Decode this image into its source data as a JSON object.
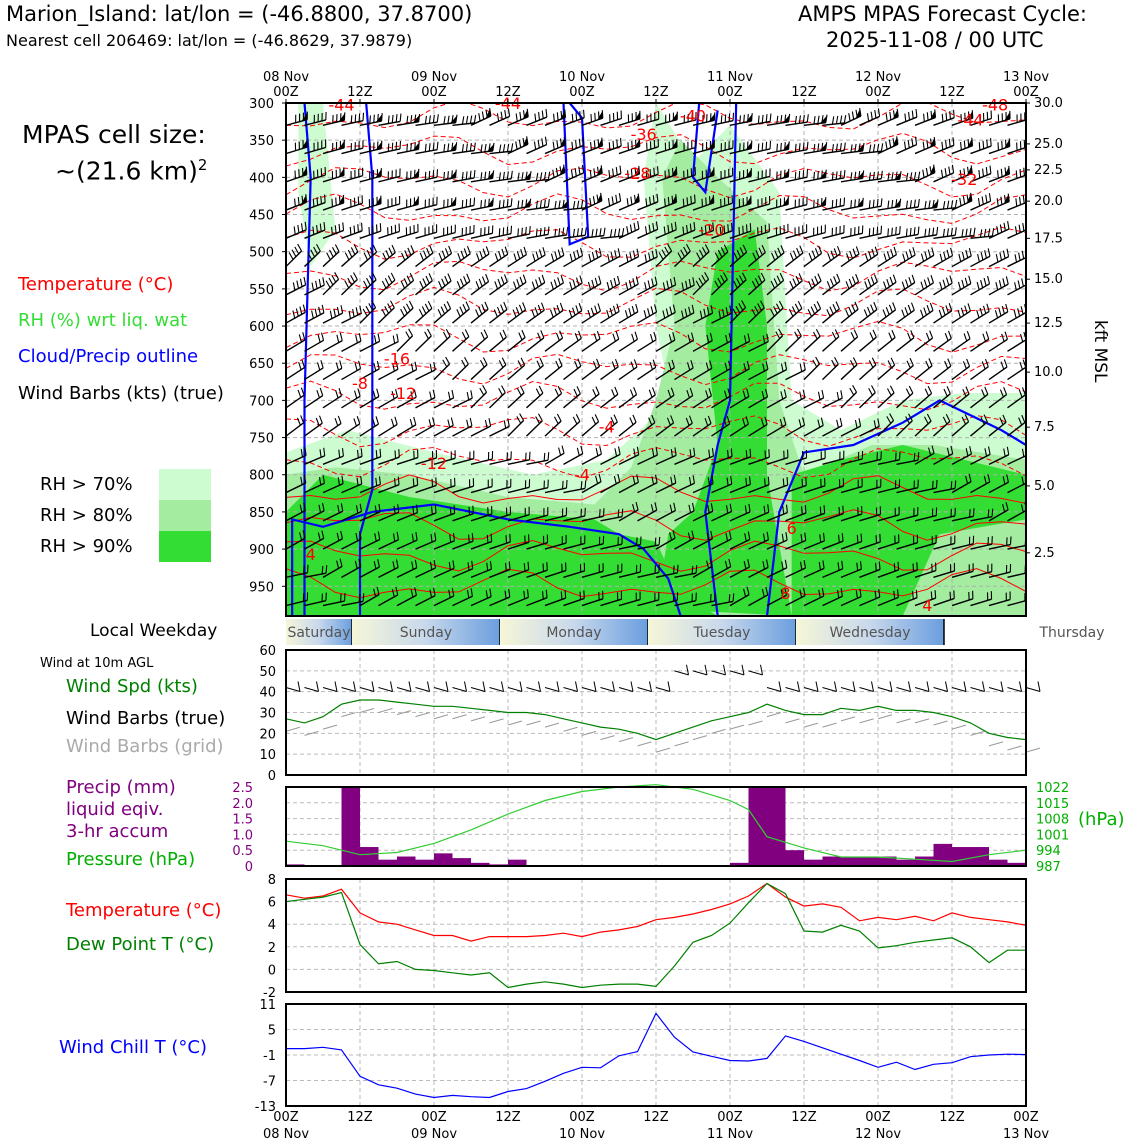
{
  "header": {
    "station": "Marion_Island: lat/lon = (-46.8800, 37.8700)",
    "nearest": "Nearest cell 206469: lat/lon = (-46.8629, 37.9879)",
    "cycle_title": "AMPS MPAS Forecast Cycle:",
    "cycle_time": "2025-11-08 / 00 UTC"
  },
  "cell_size": {
    "line1": "MPAS cell size:",
    "line2": "~(21.6 km)",
    "exp": "2"
  },
  "legend": {
    "temperature": "Temperature (°C)",
    "rh": "RH (%) wrt liq. wat",
    "cloud": "Cloud/Precip outline",
    "barbs": "Wind Barbs (kts) (true)",
    "rh70": "RH > 70%",
    "rh80": "RH > 80%",
    "rh90": "RH > 90%"
  },
  "colors": {
    "temp": "#ff0000",
    "rh70": "#ccfcd0",
    "rh80": "#a3eca0",
    "rh90": "#33dd33",
    "cloud": "#0000ff",
    "precip": "#800080",
    "pressure": "#33cc33",
    "dew": "#008000",
    "wind": "#008000"
  },
  "local_weekday": {
    "label": "Local Weekday",
    "days": [
      "Saturday",
      "Sunday",
      "Monday",
      "Tuesday",
      "Wednesday",
      "Thursday"
    ]
  },
  "wind_panel_labels": {
    "title": "Wind at 10m AGL",
    "speed": "Wind Spd (kts)",
    "barbs_true": "Wind Barbs (true)",
    "barbs_grid": "Wind Barbs (grid)"
  },
  "precip_labels": {
    "l1": "Precip (mm)",
    "l2": "liquid eqiv.",
    "l3": "3-hr accum",
    "pressure": "Pressure (hPa)",
    "unit": "(hPa)"
  },
  "temp_labels": {
    "temp": "Temperature (°C)",
    "dew": "Dew Point T (°C)"
  },
  "chill_label": "Wind Chill T (°C)",
  "kft_label": "kft MSL",
  "chart_data": [
    {
      "type": "heatmap",
      "title": "Time-height cross section",
      "x_top_ticks": [
        {
          "t": 0,
          "l1": "08 Nov",
          "l2": "00Z"
        },
        {
          "t": 12,
          "l1": "",
          "l2": "12Z"
        },
        {
          "t": 24,
          "l1": "09 Nov",
          "l2": "00Z"
        },
        {
          "t": 36,
          "l1": "",
          "l2": "12Z"
        },
        {
          "t": 48,
          "l1": "10 Nov",
          "l2": "00Z"
        },
        {
          "t": 60,
          "l1": "",
          "l2": "12Z"
        },
        {
          "t": 72,
          "l1": "11 Nov",
          "l2": "00Z"
        },
        {
          "t": 84,
          "l1": "",
          "l2": "12Z"
        },
        {
          "t": 96,
          "l1": "12 Nov",
          "l2": "00Z"
        },
        {
          "t": 108,
          "l1": "",
          "l2": "12Z"
        },
        {
          "t": 120,
          "l1": "13 Nov",
          "l2": "00Z"
        }
      ],
      "y_pressure_ticks": [
        300,
        350,
        400,
        450,
        500,
        550,
        600,
        650,
        700,
        750,
        800,
        850,
        900,
        950
      ],
      "ylim": [
        300,
        990
      ],
      "kft_ticks": [
        {
          "p": 300,
          "label": "30.0"
        },
        {
          "p": 355,
          "label": "25.0"
        },
        {
          "p": 390,
          "label": "22.5"
        },
        {
          "p": 432,
          "label": "20.0"
        },
        {
          "p": 482,
          "label": "17.5"
        },
        {
          "p": 537,
          "label": "15.0"
        },
        {
          "p": 596,
          "label": "12.5"
        },
        {
          "p": 662,
          "label": "10.0"
        },
        {
          "p": 736,
          "label": "7.5"
        },
        {
          "p": 815,
          "label": "5.0"
        },
        {
          "p": 905,
          "label": "2.5"
        }
      ],
      "temp_labels": [
        {
          "t": 9,
          "p": 310,
          "v": "-44"
        },
        {
          "t": 36,
          "p": 308,
          "v": "-44"
        },
        {
          "t": 66,
          "p": 325,
          "v": "-40"
        },
        {
          "t": 115,
          "p": 310,
          "v": "-48"
        },
        {
          "t": 111,
          "p": 330,
          "v": "-44"
        },
        {
          "t": 58,
          "p": 350,
          "v": "-36"
        },
        {
          "t": 57,
          "p": 402,
          "v": "-28"
        },
        {
          "t": 110,
          "p": 410,
          "v": "-32"
        },
        {
          "t": 69,
          "p": 478,
          "v": "-20"
        },
        {
          "t": 18,
          "p": 652,
          "v": "-16"
        },
        {
          "t": 19,
          "p": 698,
          "v": "-12"
        },
        {
          "t": 12,
          "p": 685,
          "v": "-8"
        },
        {
          "t": 52,
          "p": 743,
          "v": "-4"
        },
        {
          "t": 24,
          "p": 792,
          "v": "-12"
        },
        {
          "t": 48,
          "p": 808,
          "v": "-4"
        },
        {
          "t": 4,
          "p": 915,
          "v": "4"
        },
        {
          "t": 81,
          "p": 967,
          "v": "8"
        },
        {
          "t": 104,
          "p": 983,
          "v": "4"
        },
        {
          "t": 82,
          "p": 880,
          "v": "6"
        }
      ]
    },
    {
      "type": "line",
      "title": "Wind at 10m AGL",
      "x_hours": [
        0,
        3,
        6,
        9,
        12,
        15,
        18,
        21,
        24,
        27,
        30,
        33,
        36,
        39,
        42,
        45,
        48,
        51,
        54,
        57,
        60,
        63,
        66,
        69,
        72,
        75,
        78,
        81,
        84,
        87,
        90,
        93,
        96,
        99,
        102,
        105,
        108,
        111,
        114,
        117,
        120
      ],
      "series": [
        {
          "name": "Wind Spd (kts)",
          "values": [
            27,
            25,
            28,
            34,
            36,
            36,
            35,
            34,
            33,
            33,
            32,
            31,
            30,
            30,
            29,
            27,
            25,
            23,
            22,
            20,
            17,
            20,
            23,
            26,
            28,
            30,
            34,
            31,
            29,
            29,
            32,
            31,
            33,
            31,
            31,
            30,
            28,
            25,
            20,
            18,
            17
          ]
        }
      ],
      "ylim": [
        0,
        60
      ],
      "yticks": [
        0,
        10,
        20,
        30,
        40,
        50,
        60
      ]
    },
    {
      "type": "bar",
      "title": "Precip (mm) liquid eqiv. 3-hr accum / Pressure (hPa)",
      "x_hours": [
        0,
        3,
        6,
        9,
        12,
        15,
        18,
        21,
        24,
        27,
        30,
        33,
        36,
        39,
        42,
        45,
        48,
        51,
        54,
        57,
        60,
        63,
        66,
        69,
        72,
        75,
        78,
        81,
        84,
        87,
        90,
        93,
        96,
        99,
        102,
        105,
        108,
        111,
        114,
        117
      ],
      "precip": [
        0.05,
        0,
        0,
        2.5,
        0.6,
        0.2,
        0.3,
        0.2,
        0.4,
        0.25,
        0.1,
        0.05,
        0.2,
        0,
        0,
        0,
        0,
        0,
        0,
        0,
        0,
        0,
        0,
        0,
        0.1,
        2.5,
        2.5,
        0.5,
        0.2,
        0.3,
        0.3,
        0.3,
        0.3,
        0.2,
        0.3,
        0.7,
        0.6,
        0.6,
        0.2,
        0.1
      ],
      "precip_ylim": [
        0,
        2.5
      ],
      "precip_yticks": [
        0,
        0.5,
        1.0,
        1.5,
        2.0,
        2.5
      ],
      "pressure_x": [
        0,
        6,
        12,
        18,
        24,
        30,
        36,
        42,
        48,
        54,
        60,
        66,
        72,
        75,
        78,
        84,
        90,
        96,
        102,
        108,
        114,
        120
      ],
      "pressure": [
        998,
        996,
        992,
        993,
        997,
        1003,
        1010,
        1016,
        1020,
        1022,
        1023,
        1021,
        1016,
        1012,
        1000,
        995,
        991,
        991,
        990,
        989,
        992,
        994
      ],
      "pressure_ylim": [
        987,
        1022
      ],
      "pressure_yticks": [
        987,
        994,
        1001,
        1008,
        1015,
        1022
      ]
    },
    {
      "type": "line",
      "title": "Temperature / Dew Point",
      "x_hours": [
        0,
        3,
        6,
        9,
        12,
        15,
        18,
        21,
        24,
        27,
        30,
        33,
        36,
        39,
        42,
        45,
        48,
        51,
        54,
        57,
        60,
        63,
        66,
        69,
        72,
        75,
        78,
        81,
        84,
        87,
        90,
        93,
        96,
        99,
        102,
        105,
        108,
        111,
        114,
        117,
        120
      ],
      "series": [
        {
          "name": "Temperature (°C)",
          "values": [
            6.6,
            6.3,
            6.5,
            7.1,
            5.0,
            4.2,
            4.0,
            3.5,
            3.0,
            3.0,
            2.5,
            2.9,
            2.9,
            2.9,
            3.0,
            3.2,
            2.9,
            3.3,
            3.5,
            3.8,
            4.4,
            4.6,
            4.9,
            5.3,
            5.8,
            6.5,
            7.6,
            6.4,
            5.6,
            5.8,
            5.5,
            4.3,
            4.6,
            4.4,
            4.7,
            4.3,
            5.0,
            4.6,
            4.4,
            4.2,
            3.9
          ]
        },
        {
          "name": "Dew Point T (°C)",
          "values": [
            6.0,
            6.2,
            6.4,
            6.8,
            2.2,
            0.5,
            0.7,
            0.0,
            -0.1,
            -0.3,
            -0.5,
            -0.3,
            -1.6,
            -1.3,
            -1.1,
            -1.3,
            -1.6,
            -1.4,
            -1.3,
            -1.3,
            -1.5,
            0.3,
            2.4,
            3.0,
            4.1,
            5.9,
            7.6,
            6.7,
            3.4,
            3.3,
            3.9,
            3.4,
            1.9,
            2.1,
            2.4,
            2.6,
            2.8,
            2.0,
            0.6,
            1.7,
            1.7
          ]
        }
      ],
      "ylim": [
        -2,
        8
      ],
      "yticks": [
        -2,
        0,
        2,
        4,
        6,
        8
      ]
    },
    {
      "type": "line",
      "title": "Wind Chill T (°C)",
      "x_hours": [
        0,
        3,
        6,
        9,
        12,
        15,
        18,
        21,
        24,
        27,
        30,
        33,
        36,
        39,
        42,
        45,
        48,
        51,
        54,
        57,
        60,
        63,
        66,
        69,
        72,
        75,
        78,
        81,
        84,
        87,
        90,
        93,
        96,
        99,
        102,
        105,
        108,
        111,
        114,
        117,
        120
      ],
      "series": [
        {
          "name": "Wind Chill T (°C)",
          "values": [
            0.5,
            0.5,
            0.8,
            0.2,
            -6,
            -8,
            -8.8,
            -10.2,
            -11,
            -10.5,
            -10.8,
            -11,
            -9.6,
            -8.9,
            -7.2,
            -5.3,
            -3.9,
            -4,
            -1.2,
            -0.2,
            8.8,
            3.2,
            -0.3,
            -1.3,
            -2.3,
            -2.4,
            -1.8,
            3.5,
            2.2,
            0.7,
            -0.8,
            -2.3,
            -3.9,
            -2.7,
            -4.4,
            -3.2,
            -2.8,
            -1.4,
            -1.0,
            -0.8,
            -0.9
          ]
        }
      ],
      "ylim": [
        -13,
        11
      ],
      "yticks": [
        -13,
        -7,
        -1,
        5,
        11
      ]
    }
  ]
}
